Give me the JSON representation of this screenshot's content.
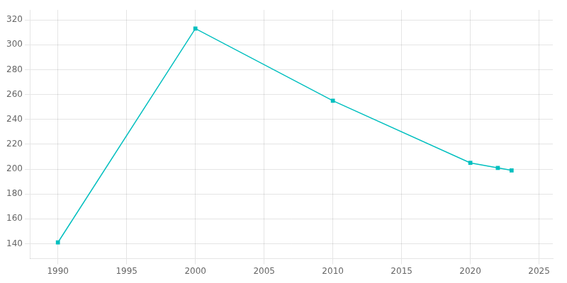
{
  "chart_data": {
    "type": "line",
    "x": [
      1990,
      2000,
      2010,
      2020,
      2022,
      2023
    ],
    "series": [
      {
        "color": "#00BFBF",
        "marker": "square",
        "values": [
          141,
          313,
          255,
          205,
          201,
          199
        ]
      }
    ],
    "xlim": [
      1988,
      2026
    ],
    "ylim": [
      128,
      328
    ],
    "xticks": [
      1990,
      1995,
      2000,
      2005,
      2010,
      2015,
      2020,
      2025
    ],
    "yticks": [
      140,
      160,
      180,
      200,
      220,
      240,
      260,
      280,
      300,
      320
    ],
    "grid": true
  }
}
